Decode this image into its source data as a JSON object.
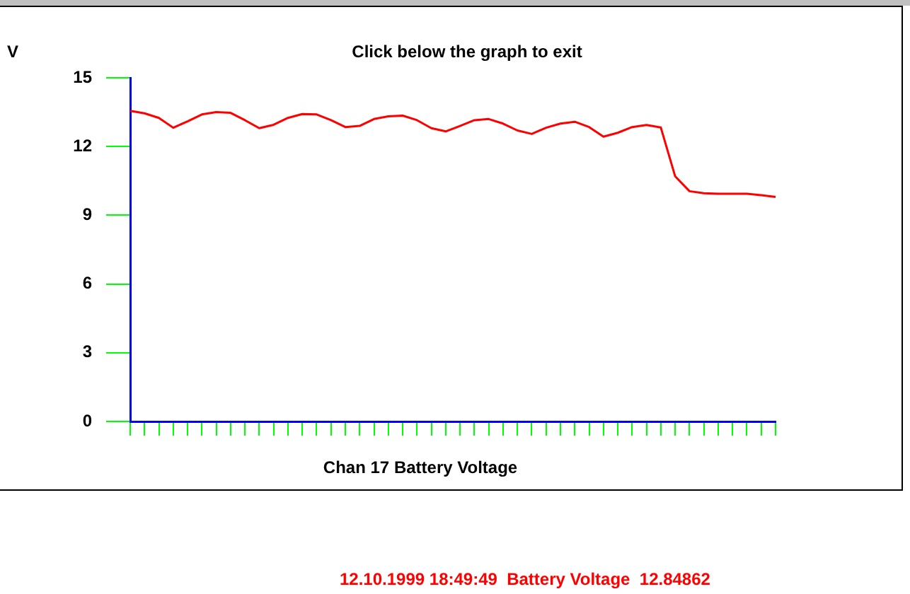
{
  "chart_data": {
    "type": "line",
    "title": "Click below the graph to exit",
    "ylabel": "V",
    "xlabel": "Chan 17 Battery Voltage",
    "annotations": [
      "12.10.1999 18:49:49  Battery Voltage  12.84862"
    ],
    "categories": [
      null,
      null,
      null,
      null,
      null,
      null,
      null,
      null,
      null,
      null,
      null,
      null,
      null,
      null,
      null,
      null,
      null,
      null,
      null,
      null,
      null,
      null,
      null,
      null,
      null,
      null,
      null,
      null,
      null,
      null,
      null,
      null,
      null,
      null,
      null,
      null,
      null,
      null,
      null,
      null,
      null,
      null,
      null,
      null,
      null,
      null
    ],
    "series": [
      {
        "color": "#ff0000",
        "values": [
          13.56,
          13.45,
          13.25,
          12.82,
          13.1,
          13.4,
          13.5,
          13.47,
          13.15,
          12.8,
          12.95,
          13.25,
          13.42,
          13.4,
          13.15,
          12.85,
          12.9,
          13.2,
          13.32,
          13.35,
          13.15,
          12.8,
          12.66,
          12.9,
          13.15,
          13.2,
          13.0,
          12.7,
          12.55,
          12.82,
          13.0,
          13.08,
          12.85,
          12.43,
          12.6,
          12.85,
          12.94,
          12.83,
          10.7,
          10.05,
          9.96,
          9.94,
          9.94,
          9.94,
          9.88,
          9.8
        ]
      }
    ],
    "ylim": [
      0,
      15
    ],
    "yticks": [
      0,
      3,
      6,
      9,
      12,
      15
    ],
    "grid": false,
    "legend": false,
    "marker": "none",
    "line_style": "solid",
    "tick_labels": "y"
  }
}
